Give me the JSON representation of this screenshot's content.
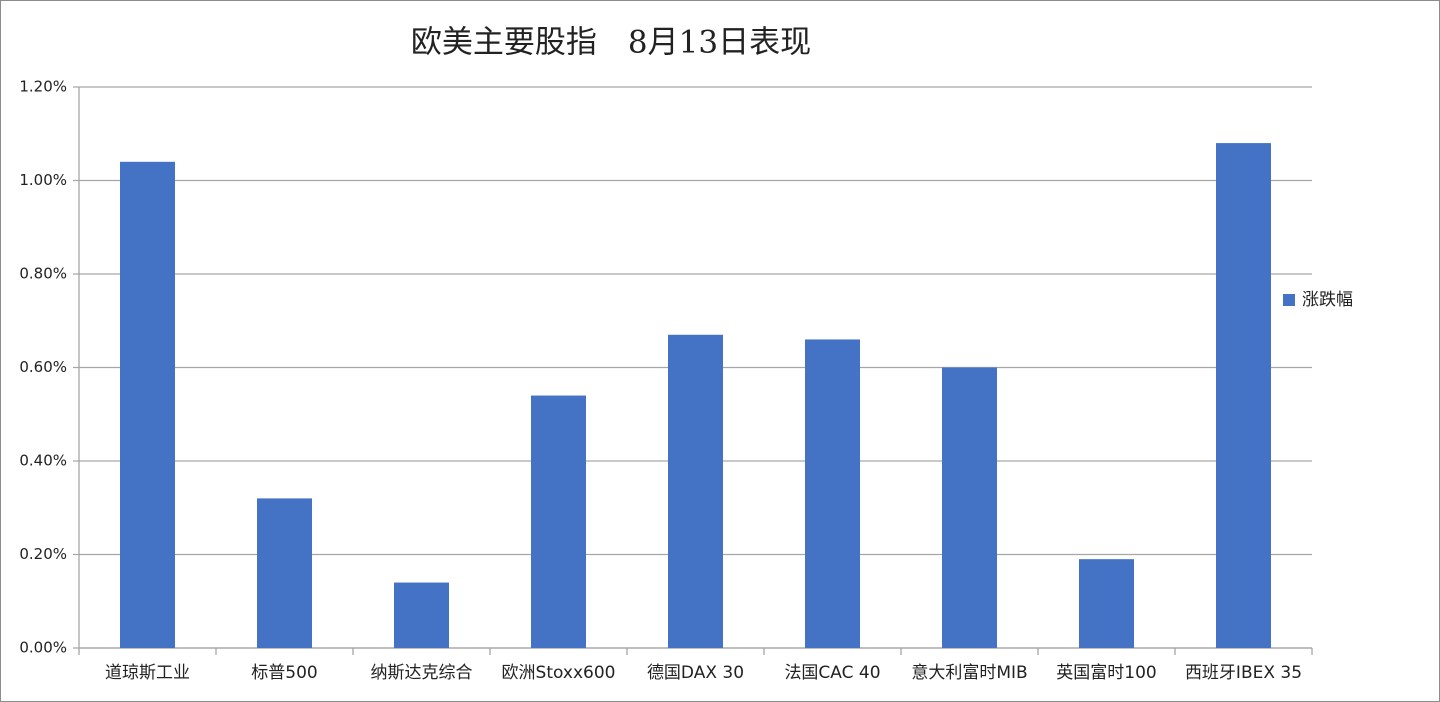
{
  "chart_data": {
    "type": "bar",
    "title": "欧美主要股指　8月13日表现",
    "categories": [
      "道琼斯工业",
      "标普500",
      "纳斯达克综合",
      "欧洲Stoxx600",
      "德国DAX 30",
      "法国CAC 40",
      "意大利富时MIB",
      "英国富时100",
      "西班牙IBEX 35"
    ],
    "series": [
      {
        "name": "涨跌幅",
        "color": "#4472c4",
        "values": [
          1.04,
          0.32,
          0.14,
          0.54,
          0.67,
          0.66,
          0.6,
          0.19,
          1.08
        ]
      }
    ],
    "ylim": [
      0,
      1.2
    ],
    "yticks": [
      {
        "value": 0,
        "label": "0.00%"
      },
      {
        "value": 0.2,
        "label": "0.20%"
      },
      {
        "value": 0.4,
        "label": "0.40%"
      },
      {
        "value": 0.6,
        "label": "0.60%"
      },
      {
        "value": 0.8,
        "label": "0.80%"
      },
      {
        "value": 1.0,
        "label": "1.00%"
      },
      {
        "value": 1.2,
        "label": "1.20%"
      }
    ],
    "grid": true,
    "legend": "right"
  }
}
